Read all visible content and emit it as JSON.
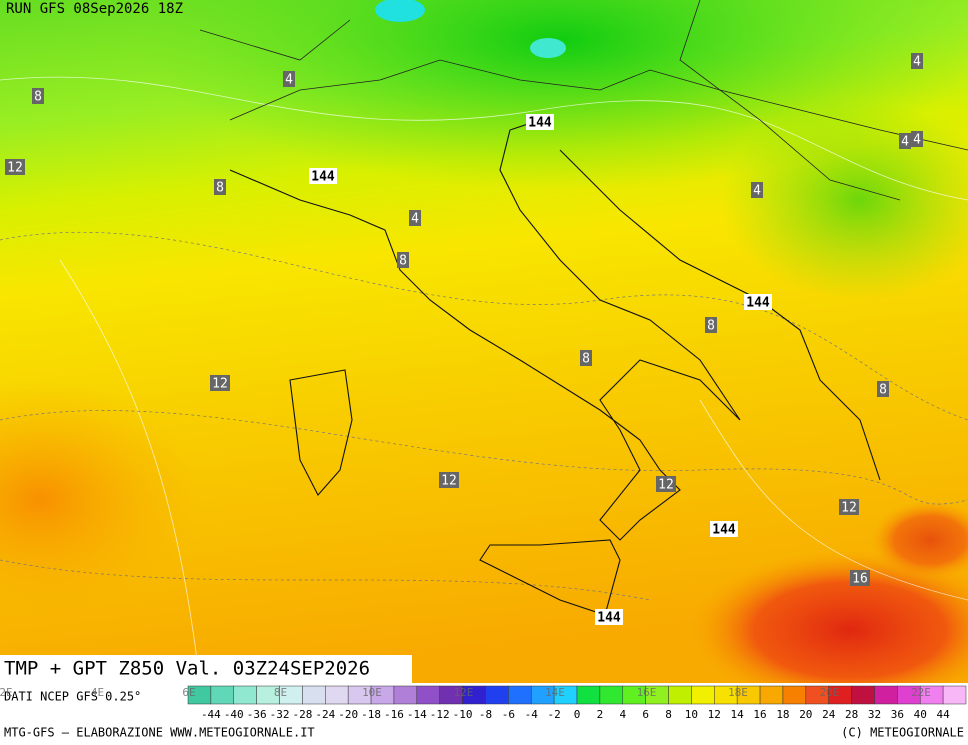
{
  "header": {
    "run": "RUN GFS 08Sep2026 18Z",
    "title": "TMP + GPT Z850 Val. 03Z24SEP2026"
  },
  "map_labels": [
    4,
    8,
    12,
    8,
    144,
    144,
    4,
    8,
    4,
    4,
    4,
    4,
    144,
    8,
    8,
    12,
    8,
    12,
    12,
    144,
    12,
    16,
    144
  ],
  "longitudes": [
    "2E",
    "4E",
    "6E",
    "8E",
    "10E",
    "12E",
    "14E",
    "16E",
    "18E",
    "20E",
    "22E"
  ],
  "colorbar": {
    "labels": [
      -44,
      -40,
      -36,
      -32,
      -28,
      -24,
      -20,
      -18,
      -16,
      -14,
      -12,
      -10,
      -8,
      -6,
      -4,
      -2,
      0,
      2,
      4,
      6,
      8,
      10,
      12,
      14,
      16,
      18,
      20,
      24,
      28,
      32,
      36,
      40,
      44
    ],
    "colors": [
      "#40c8a0",
      "#60d8b8",
      "#90e8d0",
      "#b8f0e0",
      "#d0f0f0",
      "#d8e0f0",
      "#e0d8f0",
      "#d8c8f0",
      "#c8a8e8",
      "#b080d8",
      "#9050c8",
      "#7030b0",
      "#3020d0",
      "#2040f0",
      "#2070ff",
      "#20a0ff",
      "#20d0ff",
      "#10e040",
      "#30e830",
      "#60f020",
      "#90f020",
      "#c0f000",
      "#f0f000",
      "#f8e000",
      "#f8c800",
      "#f8a800",
      "#f88000",
      "#f05020",
      "#e02020",
      "#c01040",
      "#d020a0",
      "#e040d0",
      "#f080f0",
      "#f8b8f8"
    ]
  },
  "footer": {
    "source": "DATI NCEP GFS 0.25°",
    "left": "MTG-GFS — ELABORAZIONE WWW.METEOGIORNALE.IT",
    "right": "(C) METEOGIORNALE"
  }
}
